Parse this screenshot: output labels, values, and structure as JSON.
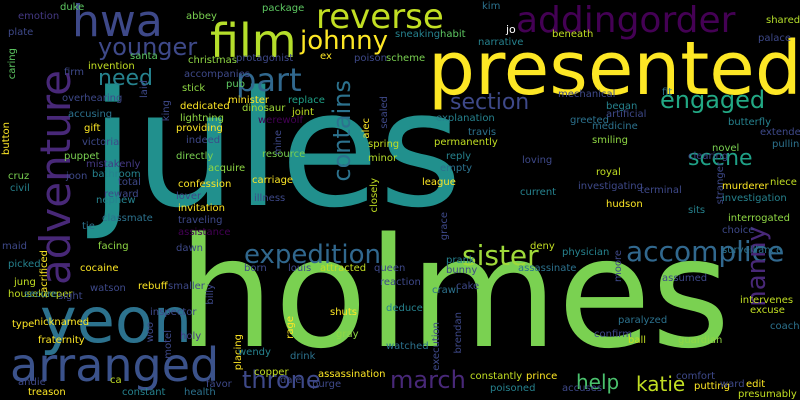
{
  "word_cloud": {
    "background": "#000000",
    "words": [
      {
        "text": "jules",
        "color": "#21908d"
      },
      {
        "text": "holmes",
        "color": "#7ad151"
      },
      {
        "text": "presented",
        "color": "#fde725"
      },
      {
        "text": "yeon",
        "color": "#2c728e"
      },
      {
        "text": "arranged",
        "color": "#3b528b"
      },
      {
        "text": "adventure",
        "color": "#482878"
      },
      {
        "text": "addingorder",
        "color": "#440154"
      },
      {
        "text": "film",
        "color": "#b5de2b"
      },
      {
        "text": "reverse",
        "color": "#c2df23"
      },
      {
        "text": "hwa",
        "color": "#3e4989"
      },
      {
        "text": "johnny",
        "color": "#fde725"
      },
      {
        "text": "part",
        "color": "#31688e"
      },
      {
        "text": "younger",
        "color": "#3e4989"
      },
      {
        "text": "need",
        "color": "#26828e"
      },
      {
        "text": "engaged",
        "color": "#22a884"
      },
      {
        "text": "section",
        "color": "#3e4989"
      },
      {
        "text": "contains",
        "color": "#2c728e"
      },
      {
        "text": "scene",
        "color": "#1fa187"
      },
      {
        "text": "expedition",
        "color": "#31688e"
      },
      {
        "text": "sister",
        "color": "#9fda3a"
      },
      {
        "text": "accomplice",
        "color": "#31688e"
      },
      {
        "text": "march",
        "color": "#482878"
      },
      {
        "text": "throne",
        "color": "#3e4989"
      },
      {
        "text": "help",
        "color": "#4ac16d"
      },
      {
        "text": "katie",
        "color": "#c2df23"
      },
      {
        "text": "nanny",
        "color": "#482878"
      },
      {
        "text": "duke",
        "color": "#5ec962"
      },
      {
        "text": "emotion",
        "color": "#443983"
      },
      {
        "text": "plate",
        "color": "#3e4989"
      },
      {
        "text": "caring",
        "color": "#5ec962"
      },
      {
        "text": "abbey",
        "color": "#7ad151"
      },
      {
        "text": "package",
        "color": "#5ec962"
      },
      {
        "text": "kim",
        "color": "#2c728e"
      },
      {
        "text": "jo",
        "color": "#ffffff"
      },
      {
        "text": "shared",
        "color": "#b5de2b"
      },
      {
        "text": "palace",
        "color": "#3e4989"
      },
      {
        "text": "sneaking",
        "color": "#26828e"
      },
      {
        "text": "habit",
        "color": "#5ec962"
      },
      {
        "text": "narrative",
        "color": "#26828e"
      },
      {
        "text": "beneath",
        "color": "#c2df23"
      },
      {
        "text": "christmas",
        "color": "#8fd744"
      },
      {
        "text": "protagonist",
        "color": "#3e4989"
      },
      {
        "text": "santa",
        "color": "#5ec962"
      },
      {
        "text": "ex",
        "color": "#fde725"
      },
      {
        "text": "poison",
        "color": "#3e4989"
      },
      {
        "text": "scheme",
        "color": "#7ad151"
      },
      {
        "text": "invention",
        "color": "#c2df23"
      },
      {
        "text": "firm",
        "color": "#3e4989"
      },
      {
        "text": "accompanies",
        "color": "#3e4989"
      },
      {
        "text": "pub",
        "color": "#5ec962"
      },
      {
        "text": "stick",
        "color": "#8fd744"
      },
      {
        "text": "minister",
        "color": "#fde725"
      },
      {
        "text": "replace",
        "color": "#1fa187"
      },
      {
        "text": "dinosaur",
        "color": "#a0da39"
      },
      {
        "text": "mechanical",
        "color": "#3e4989"
      },
      {
        "text": "began",
        "color": "#26828e"
      },
      {
        "text": "fit",
        "color": "#2c728e"
      },
      {
        "text": "overhearing",
        "color": "#3e4989"
      },
      {
        "text": "accusing",
        "color": "#2c728e"
      },
      {
        "text": "dedicated",
        "color": "#fde725"
      },
      {
        "text": "lightning",
        "color": "#8fd744"
      },
      {
        "text": "providing",
        "color": "#fde725"
      },
      {
        "text": "werewolf",
        "color": "#440154"
      },
      {
        "text": "joint",
        "color": "#c2df23"
      },
      {
        "text": "alec",
        "color": "#fde725"
      },
      {
        "text": "explanation",
        "color": "#26828e"
      },
      {
        "text": "greeted",
        "color": "#2c728e"
      },
      {
        "text": "artificial",
        "color": "#3e4989"
      },
      {
        "text": "butterfly",
        "color": "#26828e"
      },
      {
        "text": "extended",
        "color": "#3e4989"
      },
      {
        "text": "pulling",
        "color": "#2c728e"
      },
      {
        "text": "gift",
        "color": "#fde725"
      },
      {
        "text": "victoria",
        "color": "#3e4989"
      },
      {
        "text": "puppet",
        "color": "#7ad151"
      },
      {
        "text": "mistakenly",
        "color": "#443983"
      },
      {
        "text": "indeed",
        "color": "#3e4989"
      },
      {
        "text": "directly",
        "color": "#7ad151"
      },
      {
        "text": "acquire",
        "color": "#8fd744"
      },
      {
        "text": "resource",
        "color": "#7ad151"
      },
      {
        "text": "permanently",
        "color": "#c2df23"
      },
      {
        "text": "travis",
        "color": "#2c728e"
      },
      {
        "text": "medicine",
        "color": "#2c728e"
      },
      {
        "text": "smiling",
        "color": "#8fd744"
      },
      {
        "text": "novel",
        "color": "#7ad151"
      },
      {
        "text": "clearing",
        "color": "#3e4989"
      },
      {
        "text": "niece",
        "color": "#c2df23"
      },
      {
        "text": "cruz",
        "color": "#7ad151"
      },
      {
        "text": "civil",
        "color": "#26828e"
      },
      {
        "text": "joon",
        "color": "#3e4989"
      },
      {
        "text": "bathroom",
        "color": "#26828e"
      },
      {
        "text": "total",
        "color": "#3e4989"
      },
      {
        "text": "reward",
        "color": "#3e4989"
      },
      {
        "text": "confession",
        "color": "#fde725"
      },
      {
        "text": "lover",
        "color": "#3e4989"
      },
      {
        "text": "carriage",
        "color": "#fde725"
      },
      {
        "text": "spring",
        "color": "#c2df23"
      },
      {
        "text": "minor",
        "color": "#b5de2b"
      },
      {
        "text": "reply",
        "color": "#26828e"
      },
      {
        "text": "empty",
        "color": "#2c728e"
      },
      {
        "text": "loving",
        "color": "#3e4989"
      },
      {
        "text": "royal",
        "color": "#c2df23"
      },
      {
        "text": "murderer",
        "color": "#fde725"
      },
      {
        "text": "investigation",
        "color": "#26828e"
      },
      {
        "text": "maid",
        "color": "#3e4989"
      },
      {
        "text": "nephew",
        "color": "#26828e"
      },
      {
        "text": "classmate",
        "color": "#2c728e"
      },
      {
        "text": "tie",
        "color": "#2c728e"
      },
      {
        "text": "invitation",
        "color": "#fde725"
      },
      {
        "text": "illness",
        "color": "#3e4989"
      },
      {
        "text": "traveling",
        "color": "#3e4989"
      },
      {
        "text": "league",
        "color": "#fde725"
      },
      {
        "text": "current",
        "color": "#26828e"
      },
      {
        "text": "investigating",
        "color": "#3e4989"
      },
      {
        "text": "terminal",
        "color": "#3e4989"
      },
      {
        "text": "hudson",
        "color": "#fde725"
      },
      {
        "text": "sits",
        "color": "#26828e"
      },
      {
        "text": "interrogated",
        "color": "#8fd744"
      },
      {
        "text": "choice",
        "color": "#3e4989"
      },
      {
        "text": "surveillance",
        "color": "#2c728e"
      },
      {
        "text": "picked",
        "color": "#26828e"
      },
      {
        "text": "sacrificed",
        "color": "#fde725"
      },
      {
        "text": "facing",
        "color": "#8fd744"
      },
      {
        "text": "assistance",
        "color": "#440154"
      },
      {
        "text": "cocaine",
        "color": "#fde725"
      },
      {
        "text": "dawn",
        "color": "#3e4989"
      },
      {
        "text": "born",
        "color": "#3e4989"
      },
      {
        "text": "louis",
        "color": "#3e4989"
      },
      {
        "text": "attracted",
        "color": "#c2df23"
      },
      {
        "text": "queen",
        "color": "#3e4989"
      },
      {
        "text": "prank",
        "color": "#26828e"
      },
      {
        "text": "bunny",
        "color": "#3e4989"
      },
      {
        "text": "deny",
        "color": "#c2df23"
      },
      {
        "text": "physician",
        "color": "#26828e"
      },
      {
        "text": "assassinate",
        "color": "#2c728e"
      },
      {
        "text": "assumed",
        "color": "#3e4989"
      },
      {
        "text": "watson",
        "color": "#3e4989"
      },
      {
        "text": "rebuff",
        "color": "#fde725"
      },
      {
        "text": "nicknamed",
        "color": "#fde725"
      },
      {
        "text": "smaller",
        "color": "#3e4989"
      },
      {
        "text": "reaction",
        "color": "#3e4989"
      },
      {
        "text": "crawl",
        "color": "#2c728e"
      },
      {
        "text": "cake",
        "color": "#3e4989"
      },
      {
        "text": "jung",
        "color": "#c2df23"
      },
      {
        "text": "housekeeper",
        "color": "#c2df23"
      },
      {
        "text": "secure",
        "color": "#2c728e"
      },
      {
        "text": "sight",
        "color": "#3e4989"
      },
      {
        "text": "billy",
        "color": "#3e4989"
      },
      {
        "text": "inspector",
        "color": "#3e4989"
      },
      {
        "text": "shuts",
        "color": "#fde725"
      },
      {
        "text": "deduce",
        "color": "#26828e"
      },
      {
        "text": "intervenes",
        "color": "#c2df23"
      },
      {
        "text": "excuse",
        "color": "#c2df23"
      },
      {
        "text": "type",
        "color": "#fde725"
      },
      {
        "text": "fraternity",
        "color": "#fde725"
      },
      {
        "text": "holy",
        "color": "#443983"
      },
      {
        "text": "rage",
        "color": "#fde725"
      },
      {
        "text": "gray",
        "color": "#8fd744"
      },
      {
        "text": "watched",
        "color": "#2c728e"
      },
      {
        "text": "brendan",
        "color": "#3e4989"
      },
      {
        "text": "paralyzed",
        "color": "#2c728e"
      },
      {
        "text": "ball",
        "color": "#c2df23"
      },
      {
        "text": "guardian",
        "color": "#8fd744"
      },
      {
        "text": "confirm",
        "color": "#3e4989"
      },
      {
        "text": "coach",
        "color": "#2c728e"
      },
      {
        "text": "placing",
        "color": "#fde725"
      },
      {
        "text": "wendy",
        "color": "#26828e"
      },
      {
        "text": "drink",
        "color": "#2c728e"
      },
      {
        "text": "assassination",
        "color": "#fde725"
      },
      {
        "text": "copper",
        "color": "#c2df23"
      },
      {
        "text": "dale",
        "color": "#3e4989"
      },
      {
        "text": "purge",
        "color": "#3e4989"
      },
      {
        "text": "constantly",
        "color": "#c2df23"
      },
      {
        "text": "poisoned",
        "color": "#26828e"
      },
      {
        "text": "prince",
        "color": "#fde725"
      },
      {
        "text": "accuses",
        "color": "#3e4989"
      },
      {
        "text": "comfort",
        "color": "#3e4989"
      },
      {
        "text": "putting",
        "color": "#fde725"
      },
      {
        "text": "ward",
        "color": "#3e4989"
      },
      {
        "text": "edit",
        "color": "#fde725"
      },
      {
        "text": "presumably",
        "color": "#c2df23"
      },
      {
        "text": "andie",
        "color": "#3e4989"
      },
      {
        "text": "treason",
        "color": "#fde725"
      },
      {
        "text": "ca",
        "color": "#c2df23"
      },
      {
        "text": "constant",
        "color": "#26828e"
      },
      {
        "text": "favor",
        "color": "#3e4989"
      },
      {
        "text": "health",
        "color": "#2c728e"
      },
      {
        "text": "button",
        "color": "#fde725"
      },
      {
        "text": "laid",
        "color": "#3e4989"
      },
      {
        "text": "king",
        "color": "#3e4989"
      },
      {
        "text": "sealed",
        "color": "#3e4989"
      },
      {
        "text": "grace",
        "color": "#3e4989"
      },
      {
        "text": "closely",
        "color": "#c2df23"
      },
      {
        "text": "execution",
        "color": "#3e4989"
      },
      {
        "text": "moore",
        "color": "#3e4989"
      },
      {
        "text": "woo",
        "color": "#3e4989"
      },
      {
        "text": "motel",
        "color": "#3e4989"
      },
      {
        "text": "stranger",
        "color": "#3e4989"
      },
      {
        "text": "mine",
        "color": "#3e4989"
      }
    ]
  }
}
